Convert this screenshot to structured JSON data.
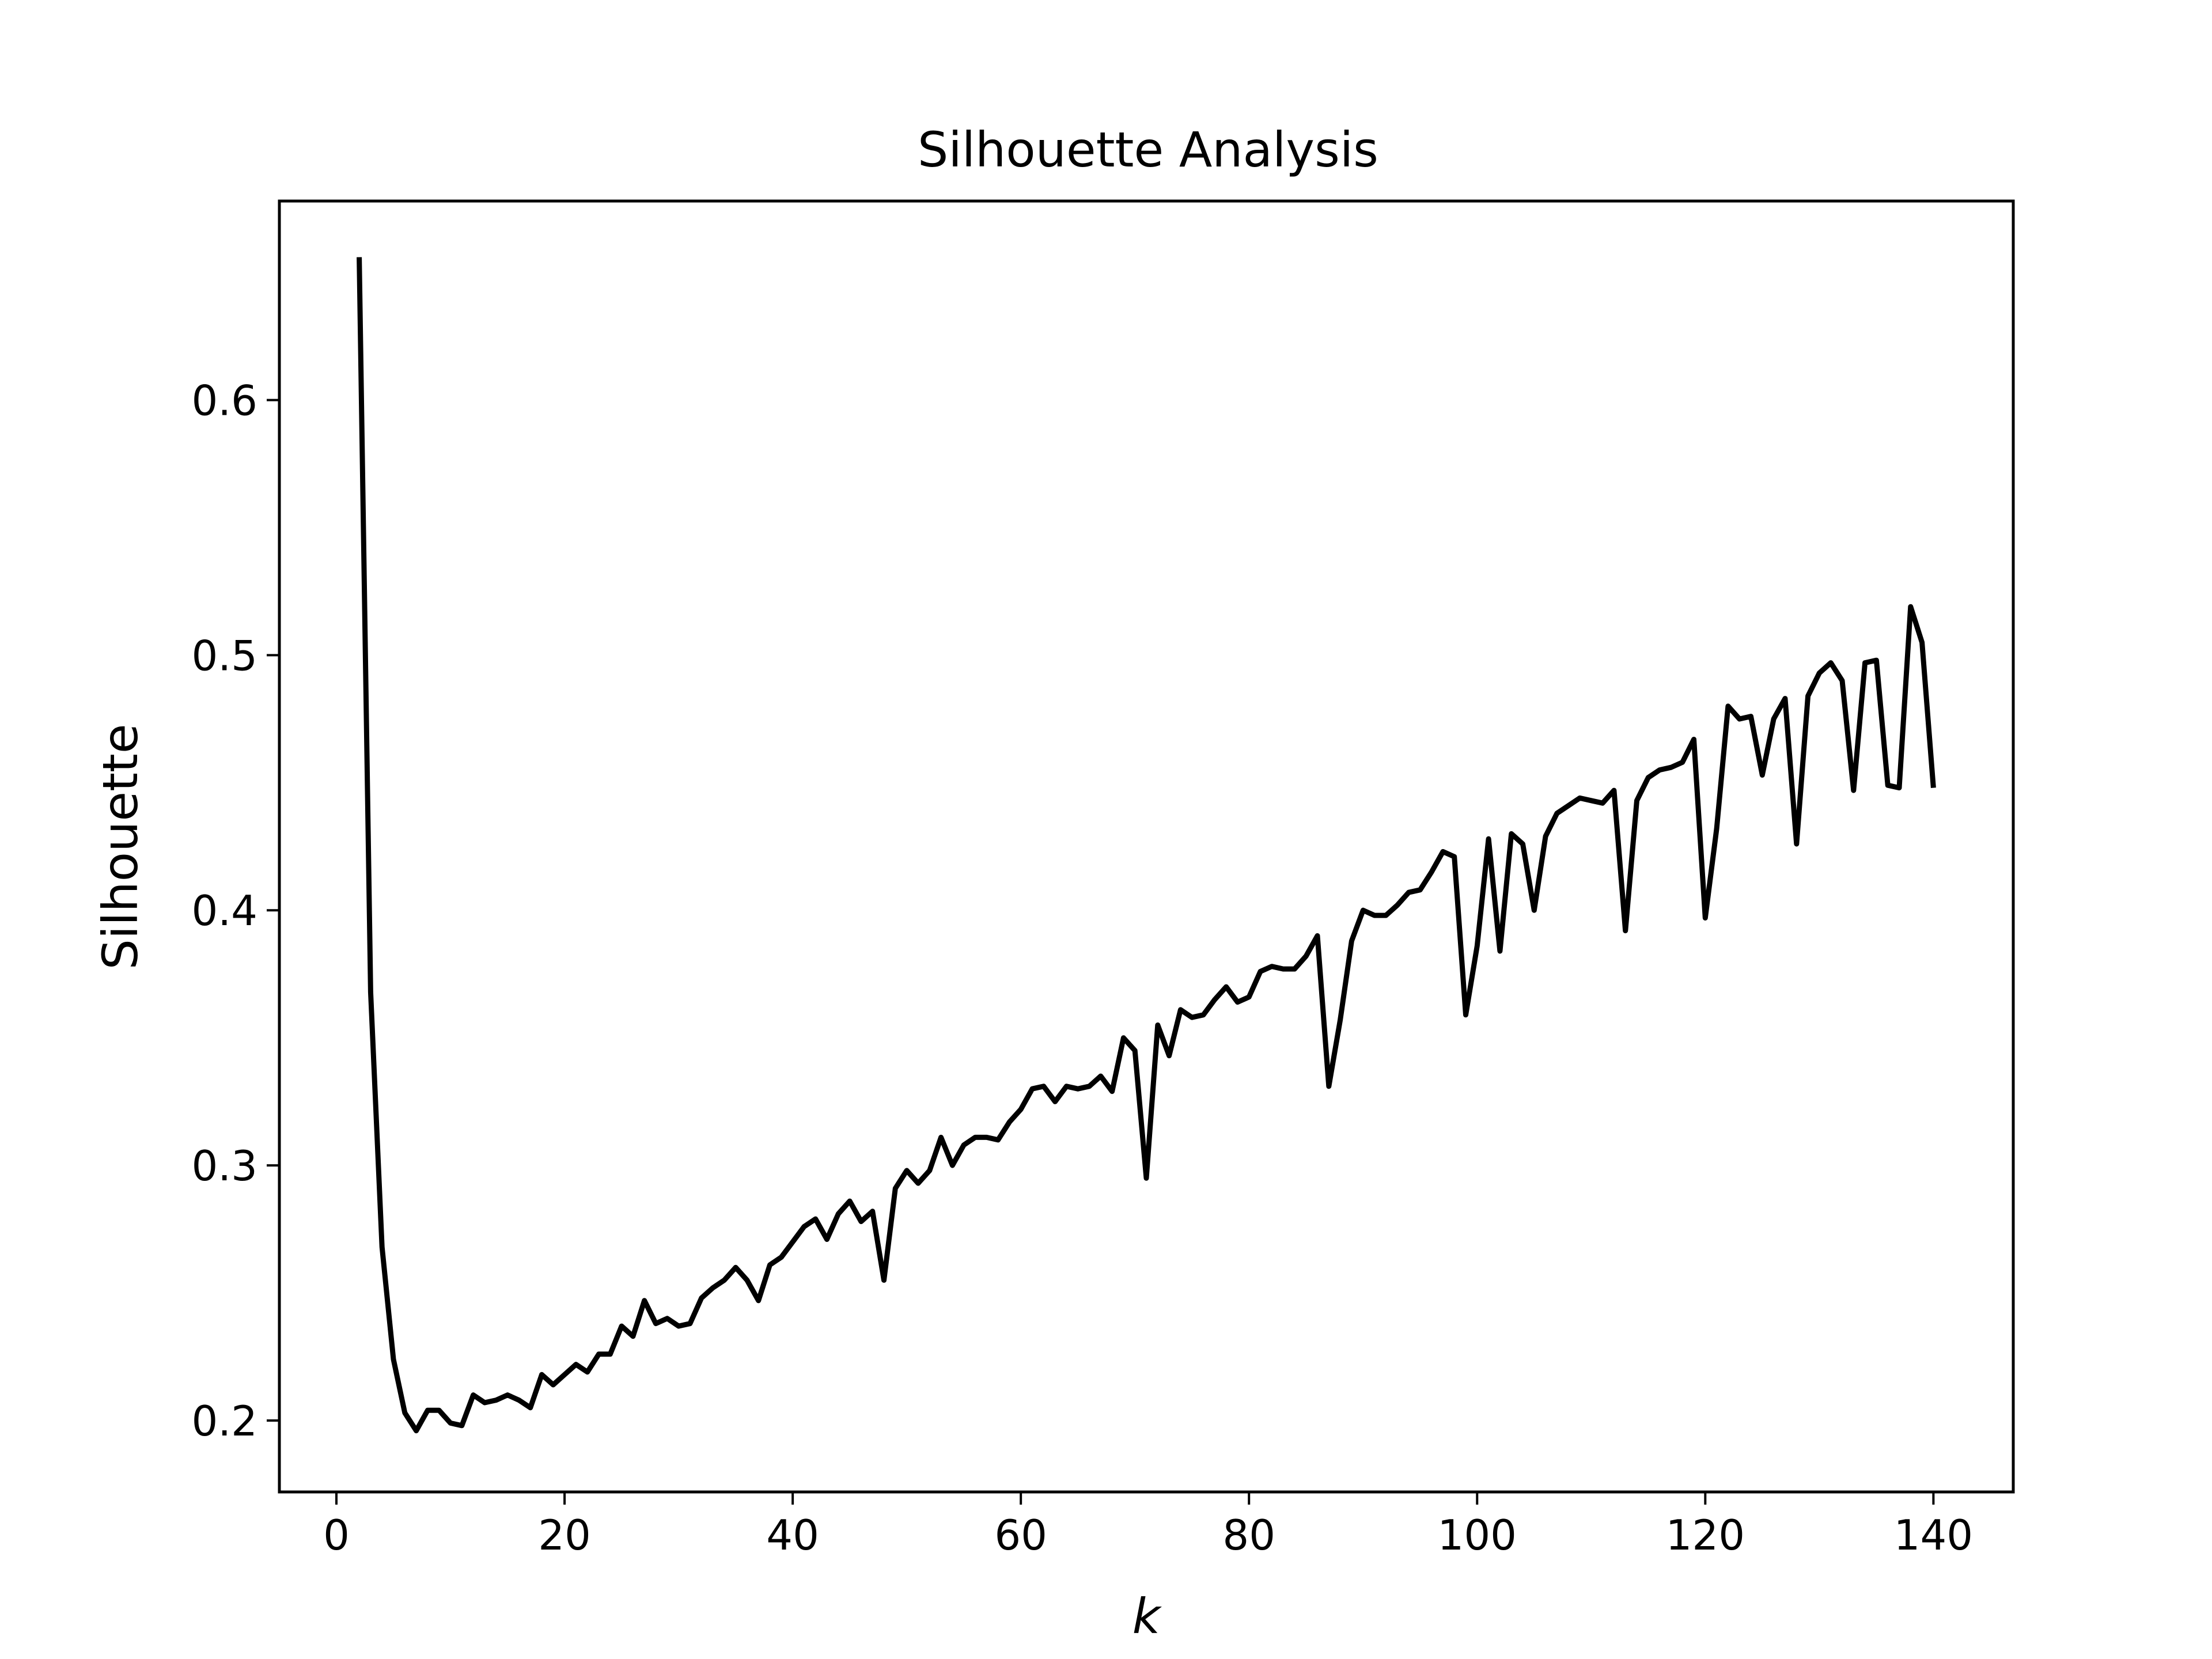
{
  "chart_data": {
    "type": "line",
    "title": "Silhouette Analysis",
    "xlabel": "k",
    "ylabel": "Silhouette",
    "xlim": [
      -5,
      147
    ],
    "ylim": [
      0.172,
      0.678
    ],
    "xticks": [
      0,
      20,
      40,
      60,
      80,
      100,
      120,
      140
    ],
    "xtick_labels": [
      "0",
      "20",
      "40",
      "60",
      "80",
      "100",
      "120",
      "140"
    ],
    "yticks": [
      0.2,
      0.3,
      0.4,
      0.5,
      0.6
    ],
    "ytick_labels": [
      "0.2",
      "0.3",
      "0.4",
      "0.5",
      "0.6"
    ],
    "grid": false,
    "legend": null,
    "series": [
      {
        "color": "#000000",
        "x": [
          2,
          3,
          4,
          5,
          6,
          7,
          8,
          9,
          10,
          11,
          12,
          13,
          14,
          15,
          16,
          17,
          18,
          19,
          20,
          21,
          22,
          23,
          24,
          25,
          26,
          27,
          28,
          29,
          30,
          31,
          32,
          33,
          34,
          35,
          36,
          37,
          38,
          39,
          40,
          41,
          42,
          43,
          44,
          45,
          46,
          47,
          48,
          49,
          50,
          51,
          52,
          53,
          54,
          55,
          56,
          57,
          58,
          59,
          60,
          61,
          62,
          63,
          64,
          65,
          66,
          67,
          68,
          69,
          70,
          71,
          72,
          73,
          74,
          75,
          76,
          77,
          78,
          79,
          80,
          81,
          82,
          83,
          84,
          85,
          86,
          87,
          88,
          89,
          90,
          91,
          92,
          93,
          94,
          95,
          96,
          97,
          98,
          99,
          100,
          101,
          102,
          103,
          104,
          105,
          106,
          107,
          108,
          109,
          110,
          111,
          112,
          113,
          114,
          115,
          116,
          117,
          118,
          119,
          120,
          121,
          122,
          123,
          124,
          125,
          126,
          127,
          128,
          129,
          130,
          131,
          132,
          133,
          134,
          135,
          136,
          137,
          138,
          139,
          140
        ],
        "y": [
          0.656,
          0.368,
          0.268,
          0.224,
          0.203,
          0.196,
          0.204,
          0.204,
          0.199,
          0.198,
          0.21,
          0.207,
          0.208,
          0.21,
          0.208,
          0.205,
          0.218,
          0.214,
          0.218,
          0.222,
          0.219,
          0.226,
          0.226,
          0.237,
          0.233,
          0.247,
          0.238,
          0.24,
          0.237,
          0.238,
          0.248,
          0.252,
          0.255,
          0.26,
          0.255,
          0.247,
          0.261,
          0.264,
          0.27,
          0.276,
          0.279,
          0.271,
          0.281,
          0.286,
          0.278,
          0.282,
          0.255,
          0.291,
          0.298,
          0.293,
          0.298,
          0.311,
          0.3,
          0.308,
          0.311,
          0.311,
          0.31,
          0.317,
          0.322,
          0.33,
          0.331,
          0.325,
          0.331,
          0.33,
          0.331,
          0.335,
          0.329,
          0.35,
          0.345,
          0.295,
          0.355,
          0.343,
          0.361,
          0.358,
          0.359,
          0.365,
          0.37,
          0.364,
          0.366,
          0.376,
          0.378,
          0.377,
          0.377,
          0.382,
          0.39,
          0.331,
          0.357,
          0.388,
          0.4,
          0.398,
          0.398,
          0.402,
          0.407,
          0.408,
          0.415,
          0.423,
          0.421,
          0.359,
          0.386,
          0.428,
          0.384,
          0.43,
          0.426,
          0.4,
          0.429,
          0.438,
          0.441,
          0.444,
          0.443,
          0.442,
          0.447,
          0.392,
          0.443,
          0.452,
          0.455,
          0.456,
          0.458,
          0.467,
          0.397,
          0.432,
          0.48,
          0.475,
          0.476,
          0.453,
          0.475,
          0.483,
          0.426,
          0.484,
          0.493,
          0.497,
          0.49,
          0.447,
          0.497,
          0.498,
          0.449,
          0.448,
          0.519,
          0.505,
          0.448
        ]
      }
    ]
  }
}
